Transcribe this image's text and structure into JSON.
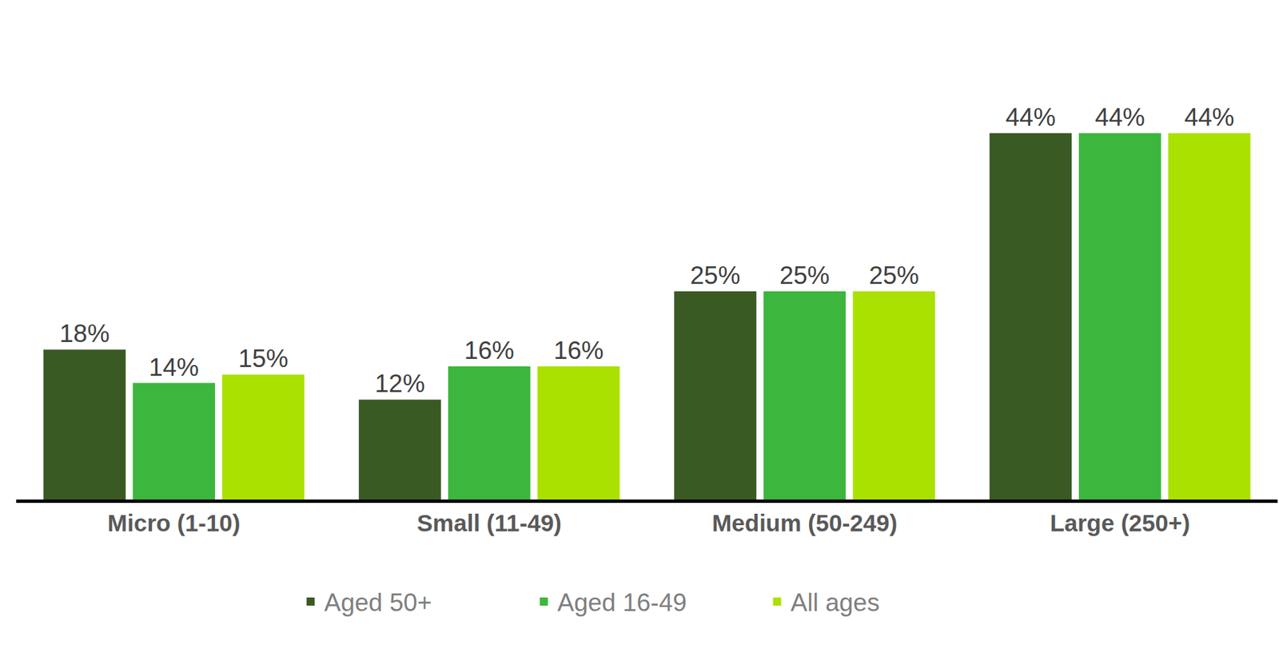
{
  "chart_data": {
    "type": "bar",
    "categories": [
      "Micro (1-10)",
      "Small (11-49)",
      "Medium (50-249)",
      "Large (250+)"
    ],
    "series": [
      {
        "name": "Aged 50+",
        "color": "#3a5a24",
        "values": [
          18,
          12,
          25,
          44
        ],
        "value_labels": [
          "18%",
          "12%",
          "25%",
          "44%"
        ]
      },
      {
        "name": "Aged 16-49",
        "color": "#3cb63c",
        "values": [
          14,
          16,
          25,
          44
        ],
        "value_labels": [
          "14%",
          "16%",
          "25%",
          "44%"
        ]
      },
      {
        "name": "All ages",
        "color": "#aae100",
        "values": [
          15,
          16,
          25,
          44
        ],
        "value_labels": [
          "15%",
          "16%",
          "25%",
          "44%"
        ]
      }
    ],
    "ylim": [
      0,
      60
    ],
    "grid": false,
    "legend": "bottom",
    "data_labels": true,
    "tick_labels": "x"
  }
}
